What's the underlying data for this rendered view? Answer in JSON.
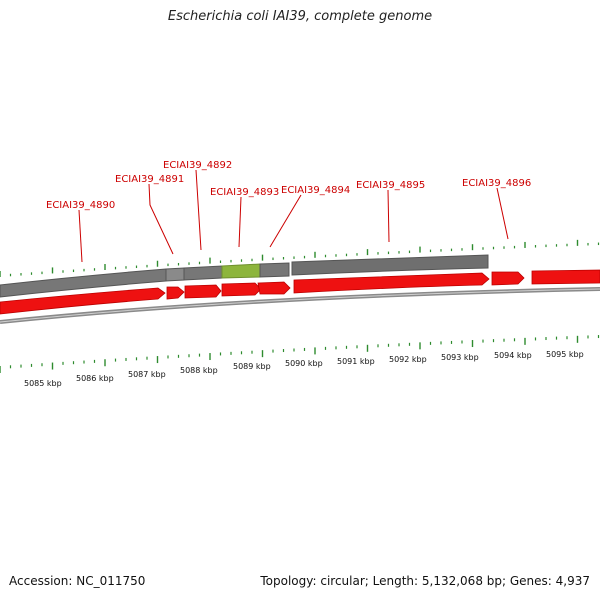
{
  "title": "Escherichia coli IAI39, complete genome",
  "footer": {
    "accession": "Accession: NC_011750",
    "summary": "Topology: circular; Length: 5,132,068 bp; Genes: 4,937"
  },
  "colors": {
    "gene": "#ee1111",
    "gene_label": "#cc0000",
    "tick": "#2e8b2e",
    "backbone_gray": "#7a7a7a",
    "highlight": "#8db53c"
  },
  "genes": [
    "ECIAI39_4890",
    "ECIAI39_4891",
    "ECIAI39_4892",
    "ECIAI39_4893",
    "ECIAI39_4894",
    "ECIAI39_4895",
    "ECIAI39_4896"
  ],
  "scale": [
    "5085 kbp",
    "5086 kbp",
    "5087 kbp",
    "5088 kbp",
    "5089 kbp",
    "5090 kbp",
    "5091 kbp",
    "5092 kbp",
    "5093 kbp",
    "5094 kbp",
    "5095 kbp"
  ]
}
